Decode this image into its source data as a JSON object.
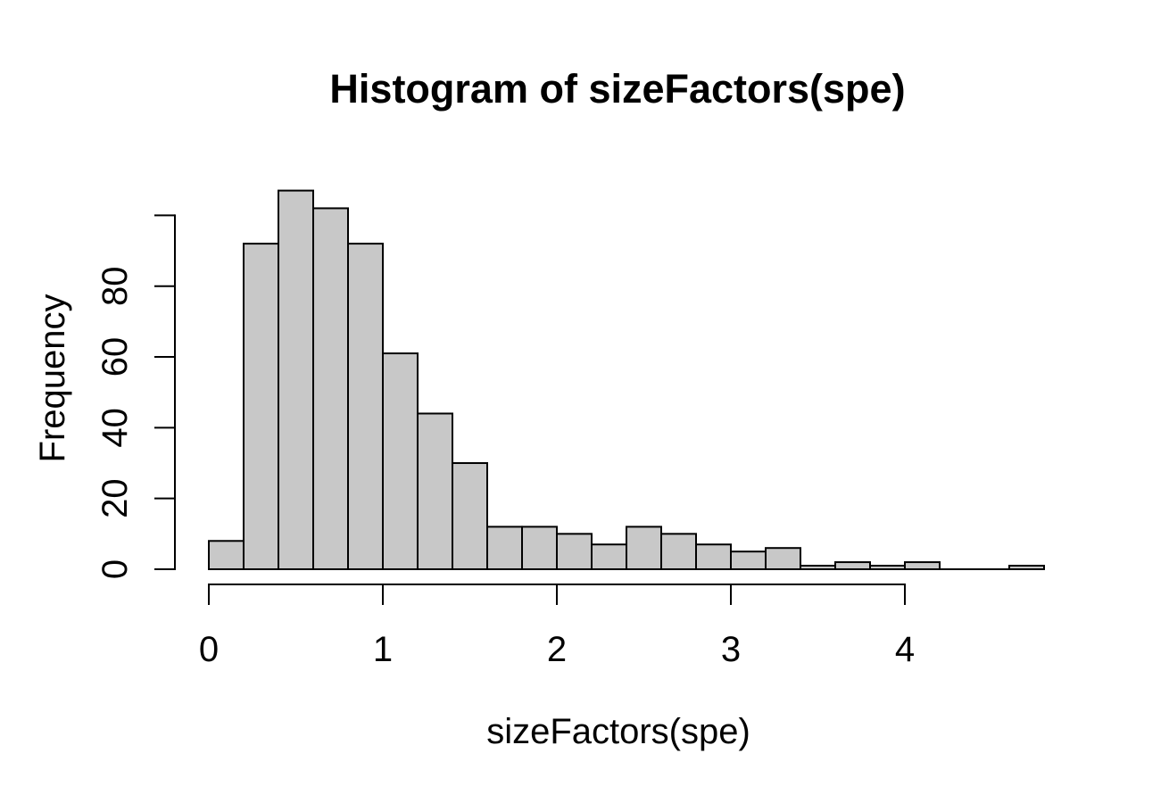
{
  "chart_data": {
    "type": "bar",
    "subtype": "histogram",
    "title": "Histogram of sizeFactors(spe)",
    "xlabel": "sizeFactors(spe)",
    "ylabel": "Frequency",
    "bin_start": 0,
    "bin_width": 0.2,
    "bin_edges": [
      0.0,
      0.2,
      0.4,
      0.6,
      0.8,
      1.0,
      1.2,
      1.4,
      1.6,
      1.8,
      2.0,
      2.2,
      2.4,
      2.6,
      2.8,
      3.0,
      3.2,
      3.4,
      3.6,
      3.8,
      4.0,
      4.2,
      4.4,
      4.6,
      4.8
    ],
    "counts": [
      8,
      92,
      107,
      102,
      92,
      61,
      44,
      30,
      12,
      12,
      10,
      7,
      12,
      10,
      7,
      5,
      6,
      1,
      2,
      1,
      2,
      0,
      0,
      1
    ],
    "x_ticks": [
      0,
      1,
      2,
      3,
      4
    ],
    "x_tick_labels": [
      "0",
      "1",
      "2",
      "3",
      "4"
    ],
    "y_ticks": [
      0,
      20,
      40,
      60,
      80,
      100
    ],
    "y_tick_labels": [
      "0",
      "20",
      "40",
      "60",
      "80",
      ""
    ],
    "xlim": [
      0,
      4.8
    ],
    "ylim": [
      0,
      107
    ],
    "grid": "off",
    "legend": "none",
    "bar_fill_color": "#c8c8c8",
    "bar_stroke_color": "#000000",
    "background_color": "#ffffff"
  }
}
